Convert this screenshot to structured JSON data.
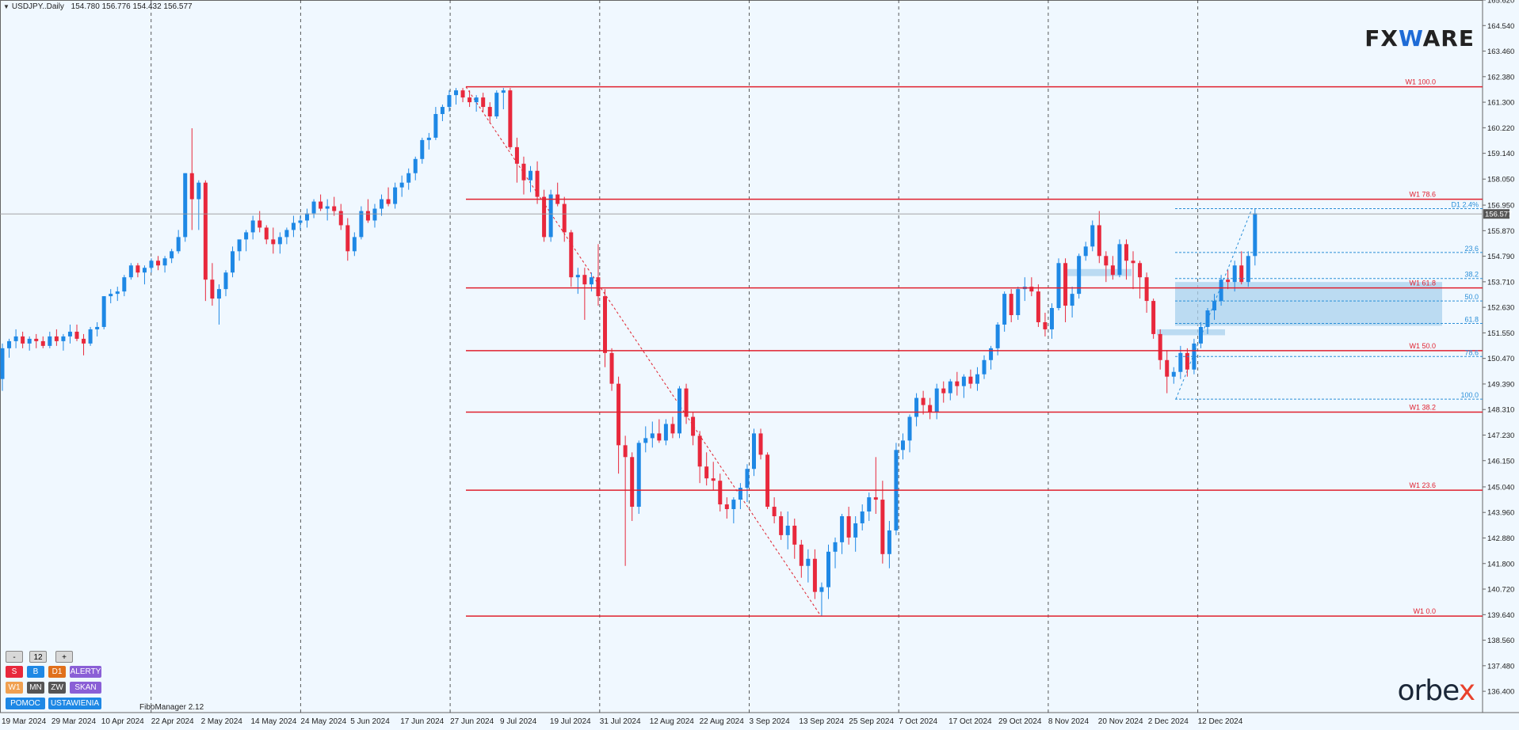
{
  "header": {
    "symbol_label": "USDJPY..Daily",
    "ohlc": "154.780 156.776 154.432 156.577"
  },
  "brand": {
    "logo_prefix": "FX",
    "logo_mark": "W",
    "logo_suffix": "ARE",
    "footer_logo_a": "orbe",
    "footer_logo_b": "x"
  },
  "fibo_manager_label": "FiboManager 2.12",
  "controls": {
    "minus": "-",
    "count": "12",
    "plus": "+",
    "s": "S",
    "b": "B",
    "d1": "D1",
    "alerty": "ALERTY",
    "w1": "W1",
    "mn": "MN",
    "zw": "ZW",
    "skan": "SKAN",
    "pomoc": "POMOC",
    "ustawienia": "USTAWIENIA"
  },
  "colors": {
    "bull": "#1e88e5",
    "bear": "#e8283c",
    "fibo_w1": "#e0202e",
    "fibo_d1": "#2b8fd8",
    "zone": "#a9d2ee",
    "grid": "#333333"
  },
  "chart_data": {
    "type": "candlestick",
    "symbol": "USDJPY",
    "timeframe": "Daily",
    "price_axis": {
      "min": 135.5,
      "max": 165.62,
      "ticks": [
        "165.620",
        "164.540",
        "163.460",
        "162.380",
        "161.300",
        "160.220",
        "159.140",
        "158.050",
        "156.950",
        "155.870",
        "154.790",
        "153.710",
        "152.630",
        "151.550",
        "150.470",
        "149.390",
        "148.310",
        "147.230",
        "146.150",
        "145.040",
        "143.960",
        "142.880",
        "141.800",
        "140.720",
        "139.640",
        "138.560",
        "137.480",
        "136.400"
      ],
      "current_price": "156.577"
    },
    "date_axis": [
      "19 Mar 2024",
      "29 Mar 2024",
      "10 Apr 2024",
      "22 Apr 2024",
      "2 May 2024",
      "14 May 2024",
      "24 May 2024",
      "5 Jun 2024",
      "17 Jun 2024",
      "27 Jun 2024",
      "9 Jul 2024",
      "19 Jul 2024",
      "31 Jul 2024",
      "12 Aug 2024",
      "22 Aug 2024",
      "3 Sep 2024",
      "13 Sep 2024",
      "25 Sep 2024",
      "7 Oct 2024",
      "17 Oct 2024",
      "29 Oct 2024",
      "8 Nov 2024",
      "20 Nov 2024",
      "2 Dec 2024",
      "12 Dec 2024"
    ],
    "fib_w1": [
      {
        "label": "W1 100.0",
        "price": 161.95
      },
      {
        "label": "W1 78.6",
        "price": 157.2
      },
      {
        "label": "W1 61.8",
        "price": 153.45
      },
      {
        "label": "W1 50.0",
        "price": 150.8
      },
      {
        "label": "W1 38.2",
        "price": 148.2
      },
      {
        "label": "W1 23.6",
        "price": 144.9
      },
      {
        "label": "W1 0.0",
        "price": 139.58
      }
    ],
    "fib_d1": [
      {
        "label": "D1 2.4%",
        "price": 156.8
      },
      {
        "label": "23.6",
        "price": 154.95
      },
      {
        "label": "38.2",
        "price": 153.85
      },
      {
        "label": "50.0",
        "price": 152.9
      },
      {
        "label": "61.8",
        "price": 151.95
      },
      {
        "label": "78.6",
        "price": 150.55
      },
      {
        "label": "100.0",
        "price": 148.75
      }
    ],
    "zones": [
      {
        "from_date": "2 Dec 2024",
        "to_date": "beyond",
        "low": 151.85,
        "high": 153.7
      },
      {
        "from_date": "8 Nov 2024",
        "to_date": "20 Nov 2024",
        "low": 153.95,
        "high": 154.25
      },
      {
        "from_date": "2 Dec 2024",
        "to_date": "5 Dec 2024",
        "low": 151.45,
        "high": 151.7
      }
    ],
    "candles": [
      [
        149.6,
        151.1,
        149.1,
        150.9
      ],
      [
        150.9,
        151.3,
        150.5,
        151.2
      ],
      [
        151.2,
        151.7,
        150.9,
        151.4
      ],
      [
        151.4,
        151.6,
        150.9,
        151.1
      ],
      [
        151.1,
        151.4,
        150.8,
        151.3
      ],
      [
        151.3,
        151.5,
        150.9,
        151.2
      ],
      [
        151.2,
        151.4,
        150.9,
        151.0
      ],
      [
        151.0,
        151.6,
        150.9,
        151.4
      ],
      [
        151.4,
        151.7,
        151.0,
        151.2
      ],
      [
        151.2,
        151.5,
        150.8,
        151.4
      ],
      [
        151.4,
        151.9,
        151.1,
        151.6
      ],
      [
        151.6,
        151.9,
        151.2,
        151.3
      ],
      [
        151.3,
        151.5,
        150.6,
        151.1
      ],
      [
        151.1,
        151.8,
        151.0,
        151.7
      ],
      [
        151.7,
        152.0,
        151.4,
        151.8
      ],
      [
        151.8,
        153.1,
        151.7,
        153.1
      ],
      [
        153.1,
        153.4,
        152.8,
        153.2
      ],
      [
        153.2,
        153.5,
        152.9,
        153.3
      ],
      [
        153.3,
        154.0,
        153.1,
        153.9
      ],
      [
        153.9,
        154.5,
        153.8,
        154.4
      ],
      [
        154.4,
        154.5,
        153.9,
        154.1
      ],
      [
        154.1,
        154.4,
        153.6,
        154.3
      ],
      [
        154.3,
        154.7,
        154.1,
        154.6
      ],
      [
        154.6,
        154.8,
        154.2,
        154.4
      ],
      [
        154.4,
        154.8,
        154.1,
        154.7
      ],
      [
        154.7,
        155.1,
        154.5,
        155.0
      ],
      [
        155.0,
        155.9,
        154.9,
        155.6
      ],
      [
        155.6,
        158.3,
        155.4,
        158.3
      ],
      [
        158.3,
        160.2,
        155.9,
        157.2
      ],
      [
        157.2,
        158.0,
        155.9,
        157.9
      ],
      [
        157.9,
        158.0,
        152.9,
        153.8
      ],
      [
        153.8,
        154.5,
        152.7,
        153.0
      ],
      [
        153.0,
        153.6,
        151.9,
        153.4
      ],
      [
        153.4,
        154.2,
        153.1,
        154.1
      ],
      [
        154.1,
        155.2,
        153.9,
        155.0
      ],
      [
        155.0,
        155.4,
        154.6,
        155.5
      ],
      [
        155.5,
        155.9,
        155.0,
        155.8
      ],
      [
        155.8,
        156.5,
        155.5,
        156.3
      ],
      [
        156.3,
        156.7,
        155.8,
        156.0
      ],
      [
        156.0,
        156.1,
        155.3,
        155.5
      ],
      [
        155.5,
        156.0,
        154.9,
        155.3
      ],
      [
        155.3,
        155.8,
        154.9,
        155.6
      ],
      [
        155.6,
        156.0,
        155.3,
        155.9
      ],
      [
        155.9,
        156.5,
        155.6,
        156.2
      ],
      [
        156.2,
        156.5,
        155.9,
        156.3
      ],
      [
        156.3,
        156.8,
        156.0,
        156.6
      ],
      [
        156.6,
        157.2,
        156.4,
        157.1
      ],
      [
        157.1,
        157.4,
        156.7,
        156.8
      ],
      [
        156.8,
        157.2,
        156.3,
        156.9
      ],
      [
        156.9,
        157.3,
        156.5,
        156.7
      ],
      [
        156.7,
        157.0,
        155.9,
        156.1
      ],
      [
        156.1,
        156.4,
        154.6,
        155.0
      ],
      [
        155.0,
        155.8,
        154.8,
        155.6
      ],
      [
        155.6,
        156.9,
        155.5,
        156.7
      ],
      [
        156.7,
        157.2,
        156.2,
        156.3
      ],
      [
        156.3,
        157.0,
        156.0,
        156.8
      ],
      [
        156.8,
        157.4,
        156.5,
        157.2
      ],
      [
        157.2,
        157.7,
        156.9,
        157.0
      ],
      [
        157.0,
        157.9,
        156.8,
        157.7
      ],
      [
        157.7,
        158.2,
        157.3,
        157.9
      ],
      [
        157.9,
        158.5,
        157.6,
        158.3
      ],
      [
        158.3,
        159.0,
        158.0,
        158.9
      ],
      [
        158.9,
        159.8,
        158.7,
        159.7
      ],
      [
        159.7,
        160.0,
        159.3,
        159.8
      ],
      [
        159.8,
        161.1,
        159.7,
        160.8
      ],
      [
        160.8,
        161.2,
        160.5,
        161.1
      ],
      [
        161.1,
        161.8,
        160.9,
        161.6
      ],
      [
        161.6,
        161.9,
        161.2,
        161.8
      ],
      [
        161.8,
        161.9,
        161.3,
        161.5
      ],
      [
        161.5,
        161.8,
        161.1,
        161.3
      ],
      [
        161.3,
        161.6,
        160.9,
        161.5
      ],
      [
        161.5,
        161.7,
        160.9,
        161.1
      ],
      [
        161.1,
        161.3,
        160.4,
        160.7
      ],
      [
        160.7,
        161.8,
        160.6,
        161.7
      ],
      [
        161.7,
        161.9,
        161.0,
        161.8
      ],
      [
        161.8,
        161.9,
        159.3,
        159.4
      ],
      [
        159.4,
        159.8,
        157.9,
        158.7
      ],
      [
        158.7,
        159.0,
        157.4,
        158.0
      ],
      [
        158.0,
        158.6,
        157.5,
        158.4
      ],
      [
        158.4,
        158.8,
        157.0,
        157.3
      ],
      [
        157.3,
        157.6,
        155.4,
        155.6
      ],
      [
        155.6,
        157.6,
        155.4,
        157.4
      ],
      [
        157.4,
        157.9,
        156.9,
        157.0
      ],
      [
        157.0,
        157.3,
        155.4,
        155.8
      ],
      [
        155.8,
        155.9,
        153.5,
        153.9
      ],
      [
        153.9,
        154.3,
        153.2,
        154.0
      ],
      [
        154.0,
        154.3,
        152.1,
        153.6
      ],
      [
        153.6,
        154.1,
        153.3,
        153.9
      ],
      [
        153.9,
        155.3,
        152.7,
        153.1
      ],
      [
        153.1,
        153.4,
        150.1,
        150.7
      ],
      [
        150.7,
        150.9,
        149.1,
        149.4
      ],
      [
        149.4,
        149.7,
        145.6,
        146.8
      ],
      [
        146.8,
        147.2,
        141.7,
        146.3
      ],
      [
        146.3,
        146.5,
        143.6,
        144.2
      ],
      [
        144.2,
        147.0,
        143.9,
        146.9
      ],
      [
        146.9,
        147.6,
        146.5,
        147.1
      ],
      [
        147.1,
        147.8,
        146.7,
        147.3
      ],
      [
        147.3,
        147.9,
        146.9,
        147.0
      ],
      [
        147.0,
        147.9,
        146.8,
        147.7
      ],
      [
        147.7,
        148.0,
        147.1,
        147.3
      ],
      [
        147.3,
        149.3,
        147.1,
        149.2
      ],
      [
        149.2,
        149.4,
        147.7,
        148.0
      ],
      [
        148.0,
        148.2,
        146.8,
        147.2
      ],
      [
        147.2,
        147.4,
        145.2,
        145.9
      ],
      [
        145.9,
        146.5,
        145.1,
        145.4
      ],
      [
        145.4,
        146.1,
        144.9,
        145.3
      ],
      [
        145.3,
        145.6,
        144.0,
        144.3
      ],
      [
        144.3,
        144.6,
        143.7,
        144.1
      ],
      [
        144.1,
        144.6,
        143.5,
        144.5
      ],
      [
        144.5,
        145.2,
        144.1,
        145.0
      ],
      [
        145.0,
        146.0,
        144.4,
        145.8
      ],
      [
        145.8,
        147.5,
        145.5,
        147.3
      ],
      [
        147.3,
        147.5,
        146.2,
        146.4
      ],
      [
        146.4,
        146.5,
        144.1,
        144.2
      ],
      [
        144.2,
        144.6,
        143.5,
        143.8
      ],
      [
        143.8,
        144.0,
        142.8,
        143.0
      ],
      [
        143.0,
        144.0,
        142.4,
        143.4
      ],
      [
        143.4,
        143.7,
        142.0,
        142.6
      ],
      [
        142.6,
        142.8,
        141.2,
        141.7
      ],
      [
        141.7,
        142.4,
        141.0,
        142.0
      ],
      [
        142.0,
        142.4,
        140.3,
        140.6
      ],
      [
        140.6,
        141.0,
        139.6,
        140.8
      ],
      [
        140.8,
        142.6,
        140.3,
        142.3
      ],
      [
        142.3,
        142.9,
        141.6,
        142.7
      ],
      [
        142.7,
        143.9,
        142.2,
        143.8
      ],
      [
        143.8,
        144.2,
        142.6,
        142.9
      ],
      [
        142.9,
        143.8,
        142.3,
        143.5
      ],
      [
        143.5,
        144.3,
        143.2,
        144.0
      ],
      [
        144.0,
        144.8,
        143.6,
        144.6
      ],
      [
        144.6,
        146.3,
        143.9,
        144.5
      ],
      [
        144.5,
        145.3,
        141.8,
        142.2
      ],
      [
        142.2,
        143.6,
        141.6,
        143.2
      ],
      [
        143.2,
        146.9,
        143.0,
        146.6
      ],
      [
        146.6,
        147.3,
        146.2,
        147.0
      ],
      [
        147.0,
        148.1,
        146.5,
        148.0
      ],
      [
        148.0,
        149.0,
        147.6,
        148.8
      ],
      [
        148.8,
        149.1,
        148.1,
        148.5
      ],
      [
        148.5,
        148.8,
        147.9,
        148.2
      ],
      [
        148.2,
        149.4,
        147.9,
        149.2
      ],
      [
        149.2,
        149.5,
        148.6,
        149.0
      ],
      [
        149.0,
        149.6,
        148.7,
        149.5
      ],
      [
        149.5,
        149.9,
        148.9,
        149.3
      ],
      [
        149.3,
        149.8,
        148.8,
        149.7
      ],
      [
        149.7,
        150.0,
        149.2,
        149.4
      ],
      [
        149.4,
        150.1,
        149.1,
        149.8
      ],
      [
        149.8,
        150.6,
        149.6,
        150.4
      ],
      [
        150.4,
        151.0,
        150.0,
        150.9
      ],
      [
        150.9,
        152.0,
        150.6,
        151.9
      ],
      [
        151.9,
        153.3,
        151.6,
        153.2
      ],
      [
        153.2,
        153.4,
        152.0,
        152.3
      ],
      [
        152.3,
        153.5,
        152.1,
        153.4
      ],
      [
        153.4,
        153.9,
        152.9,
        153.5
      ],
      [
        153.5,
        153.9,
        153.1,
        153.3
      ],
      [
        153.3,
        153.6,
        151.8,
        152.0
      ],
      [
        152.0,
        152.4,
        151.4,
        151.7
      ],
      [
        151.7,
        152.8,
        151.3,
        152.6
      ],
      [
        152.6,
        154.7,
        152.5,
        154.5
      ],
      [
        154.5,
        154.7,
        152.0,
        152.7
      ],
      [
        152.7,
        153.5,
        152.2,
        153.2
      ],
      [
        153.2,
        154.9,
        153.0,
        154.8
      ],
      [
        154.8,
        155.4,
        154.6,
        155.2
      ],
      [
        155.2,
        156.3,
        155.0,
        156.1
      ],
      [
        156.1,
        156.7,
        154.5,
        154.8
      ],
      [
        154.8,
        155.0,
        153.7,
        154.4
      ],
      [
        154.4,
        154.8,
        153.8,
        154.0
      ],
      [
        154.0,
        155.5,
        153.9,
        155.3
      ],
      [
        155.3,
        155.5,
        153.8,
        154.6
      ],
      [
        154.6,
        155.0,
        153.4,
        154.5
      ],
      [
        154.5,
        154.6,
        153.0,
        153.9
      ],
      [
        153.9,
        154.1,
        152.4,
        152.9
      ],
      [
        152.9,
        153.0,
        151.3,
        151.5
      ],
      [
        151.5,
        151.7,
        150.0,
        150.4
      ],
      [
        150.4,
        150.8,
        149.0,
        149.7
      ],
      [
        149.7,
        150.1,
        149.4,
        149.9
      ],
      [
        149.9,
        151.0,
        149.6,
        150.7
      ],
      [
        150.7,
        150.9,
        149.7,
        150.0
      ],
      [
        150.0,
        151.3,
        149.8,
        151.1
      ],
      [
        151.1,
        152.0,
        150.9,
        151.8
      ],
      [
        151.8,
        152.6,
        151.5,
        152.5
      ],
      [
        152.5,
        153.2,
        152.1,
        152.9
      ],
      [
        152.9,
        154.0,
        152.7,
        153.8
      ],
      [
        153.8,
        154.2,
        153.4,
        153.7
      ],
      [
        153.7,
        154.6,
        153.3,
        154.4
      ],
      [
        154.4,
        155.0,
        153.6,
        153.7
      ],
      [
        153.7,
        155.0,
        153.5,
        154.8
      ],
      [
        154.8,
        156.8,
        154.4,
        156.6
      ]
    ]
  }
}
